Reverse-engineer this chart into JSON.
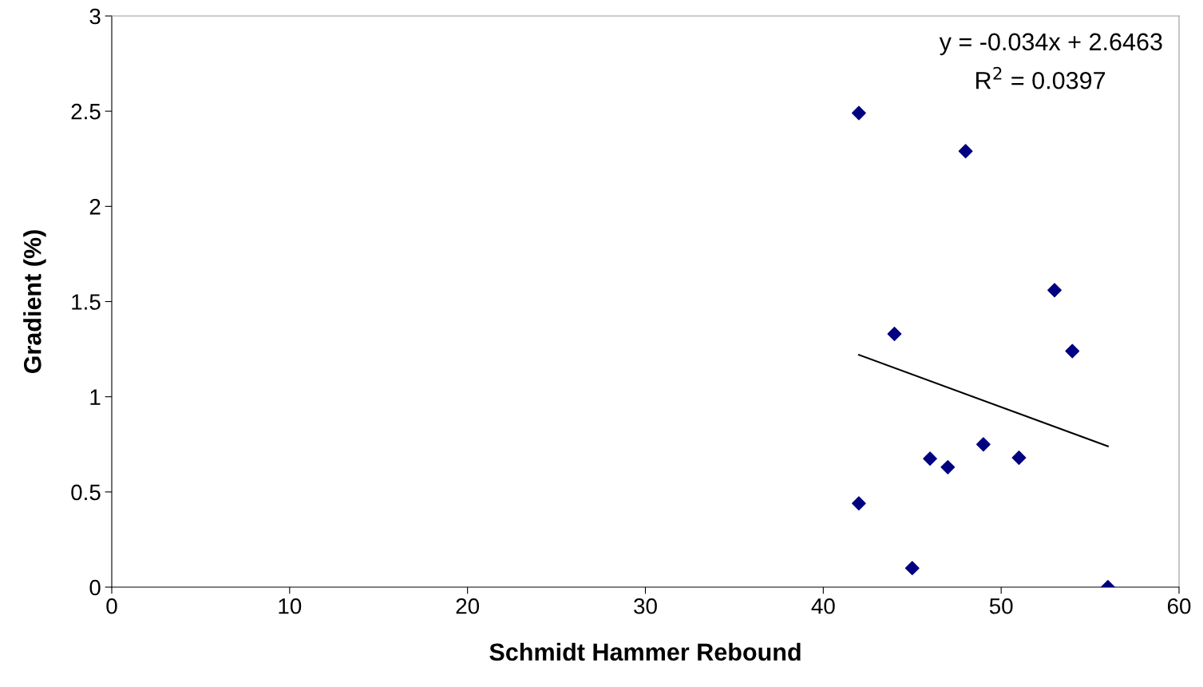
{
  "chart_data": {
    "type": "scatter",
    "xlabel": "Schmidt Hammer Rebound",
    "ylabel": "Gradient (%)",
    "annotations": [
      "y = -0.034x + 2.6463",
      "R$^{2}$ = 0.0397"
    ],
    "x": [
      42,
      48,
      53,
      44,
      54,
      49,
      51,
      46,
      47,
      42,
      45,
      56
    ],
    "series": [
      {
        "color": "#000080",
        "values": [
          2.49,
          2.29,
          1.56,
          1.33,
          1.24,
          0.75,
          0.68,
          0.675,
          0.63,
          0.44,
          0.1,
          0
        ],
        "marker": "diamond"
      },
      {
        "type": "line",
        "color": "#000000",
        "x": [
          42,
          56
        ],
        "values": [
          1.22,
          0.74
        ],
        "marker": "none"
      }
    ],
    "xlim": [
      0,
      60
    ],
    "xticks": [
      0,
      10,
      20,
      30,
      40,
      50,
      60
    ],
    "ylim": [
      0,
      3
    ],
    "yticks": [
      0,
      0.5,
      1,
      1.5,
      2,
      2.5,
      3
    ],
    "grid": false,
    "legend": false
  }
}
